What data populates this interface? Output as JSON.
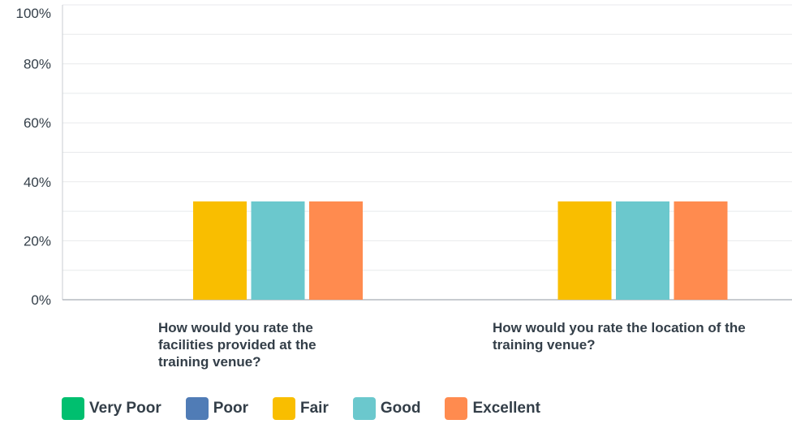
{
  "chart_data": {
    "type": "bar",
    "categories": [
      "How would you rate the facilities provided at the training venue?",
      "How would you rate the location of the training venue?"
    ],
    "series": [
      {
        "name": "Very Poor",
        "color": "#00bf6f",
        "values": [
          0,
          0
        ]
      },
      {
        "name": "Poor",
        "color": "#507cb6",
        "values": [
          0,
          0
        ]
      },
      {
        "name": "Fair",
        "color": "#f9be00",
        "values": [
          33.33,
          33.33
        ]
      },
      {
        "name": "Good",
        "color": "#6bc8cd",
        "values": [
          33.33,
          33.33
        ]
      },
      {
        "name": "Excellent",
        "color": "#ff8b4f",
        "values": [
          33.33,
          33.33
        ]
      }
    ],
    "y_ticks": [
      "0%",
      "20%",
      "40%",
      "60%",
      "80%",
      "100%"
    ],
    "ylim": [
      0,
      100
    ],
    "grid": true,
    "legend_position": "bottom-left"
  }
}
